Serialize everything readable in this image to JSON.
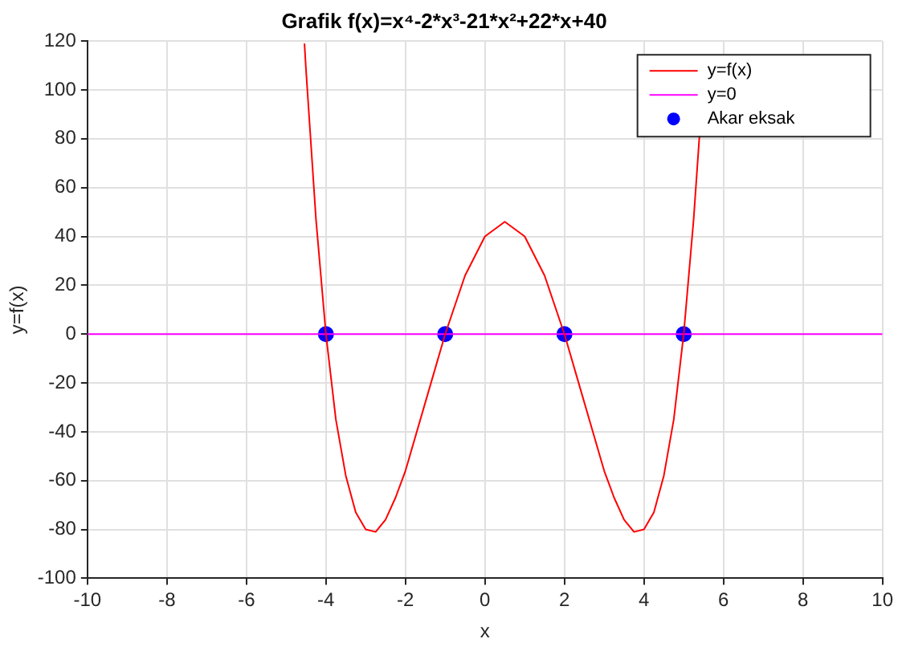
{
  "chart_data": {
    "type": "line",
    "title": "Grafik f(x)=x⁴-2*x³-21*x²+22*x+40",
    "xlabel": "x",
    "ylabel": "y=f(x)",
    "xlim": [
      -10,
      10
    ],
    "xticks": [
      -10,
      -8,
      -6,
      -4,
      -2,
      0,
      2,
      4,
      6,
      8,
      10
    ],
    "ylim": [
      -100,
      120
    ],
    "yticks": [
      -100,
      -80,
      -60,
      -40,
      -20,
      0,
      20,
      40,
      60,
      80,
      100,
      120
    ],
    "grid": true,
    "legend": "top right",
    "series": [
      {
        "name": "y=f(x)",
        "type": "line",
        "color": "#ff0000",
        "marker": "none",
        "x": [
          -4.54,
          -4.5,
          -4.25,
          -4,
          -3.75,
          -3.5,
          -3.25,
          -3,
          -2.75,
          -2.5,
          -2.25,
          -2,
          -1.5,
          -1,
          -0.5,
          0,
          0.5,
          1,
          1.5,
          2,
          2.5,
          3,
          3.25,
          3.5,
          3.75,
          4,
          4.25,
          4.5,
          4.75,
          5,
          5.25,
          5.4
        ],
        "values": [
          119,
          108,
          47,
          0,
          -35,
          -58,
          -73,
          -80,
          -81,
          -76,
          -67,
          -56,
          -28,
          0,
          24,
          40,
          46,
          40,
          24,
          0,
          -28,
          -56,
          -67,
          -76,
          -81,
          -80,
          -73,
          -58,
          -35,
          0,
          47,
          82
        ]
      },
      {
        "name": "y=0",
        "type": "line",
        "color": "#ff00ff",
        "marker": "none",
        "x": [
          -10,
          10
        ],
        "values": [
          0,
          0
        ]
      },
      {
        "name": "Akar eksak",
        "type": "scatter",
        "color": "#0000ff",
        "marker": "circle",
        "x": [
          -4,
          -1,
          2,
          5
        ],
        "values": [
          0,
          0,
          0,
          0
        ]
      }
    ]
  }
}
